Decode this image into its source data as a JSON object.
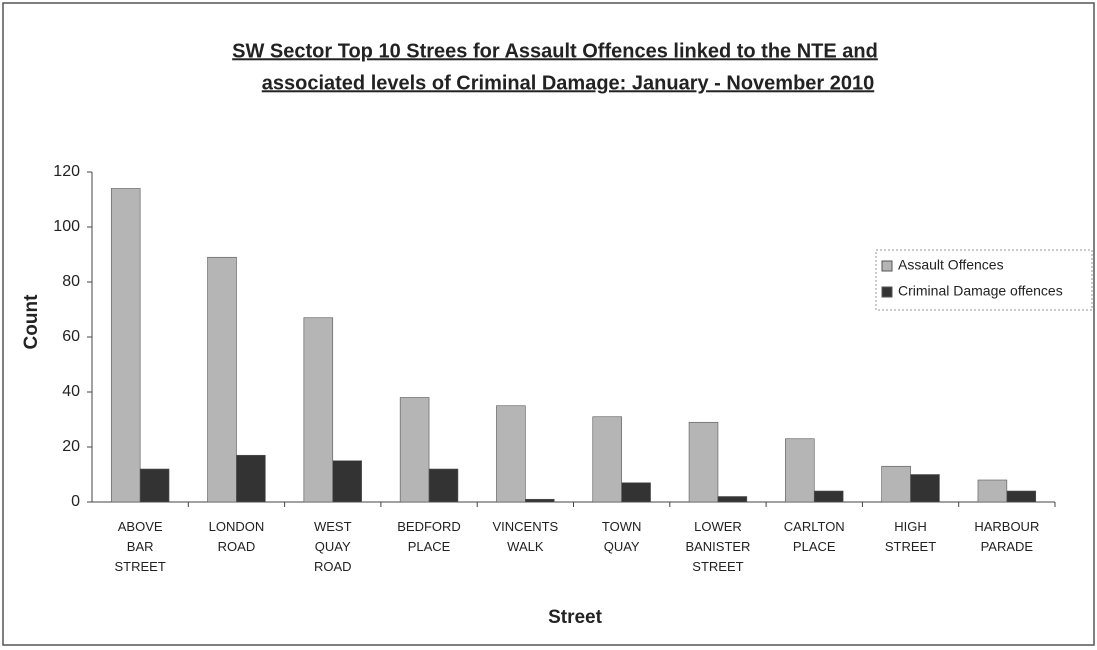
{
  "chart_data": {
    "type": "bar",
    "title": [
      "SW Sector Top 10 Strees for Assault Offences linked to the NTE and",
      "associated levels of Criminal Damage: January - November 2010"
    ],
    "x_label": "Street",
    "y_label": "Count",
    "categories": [
      "ABOVE BAR STREET",
      "LONDON ROAD",
      "WEST QUAY ROAD",
      "BEDFORD PLACE",
      "VINCENTS WALK",
      "TOWN QUAY",
      "LOWER BANISTER STREET",
      "CARLTON PLACE",
      "HIGH STREET",
      "HARBOUR PARADE"
    ],
    "series": [
      {
        "name": "Assault Offences",
        "color": "#b5b5b5",
        "values": [
          114,
          89,
          67,
          38,
          35,
          31,
          29,
          23,
          13,
          8
        ]
      },
      {
        "name": "Criminal Damage offences",
        "color": "#333333",
        "values": [
          12,
          17,
          15,
          12,
          1,
          7,
          2,
          4,
          10,
          4
        ]
      }
    ],
    "ylim": [
      0,
      120
    ],
    "yticks": [
      0,
      20,
      40,
      60,
      80,
      100,
      120
    ],
    "grid": false,
    "legend": "right"
  }
}
